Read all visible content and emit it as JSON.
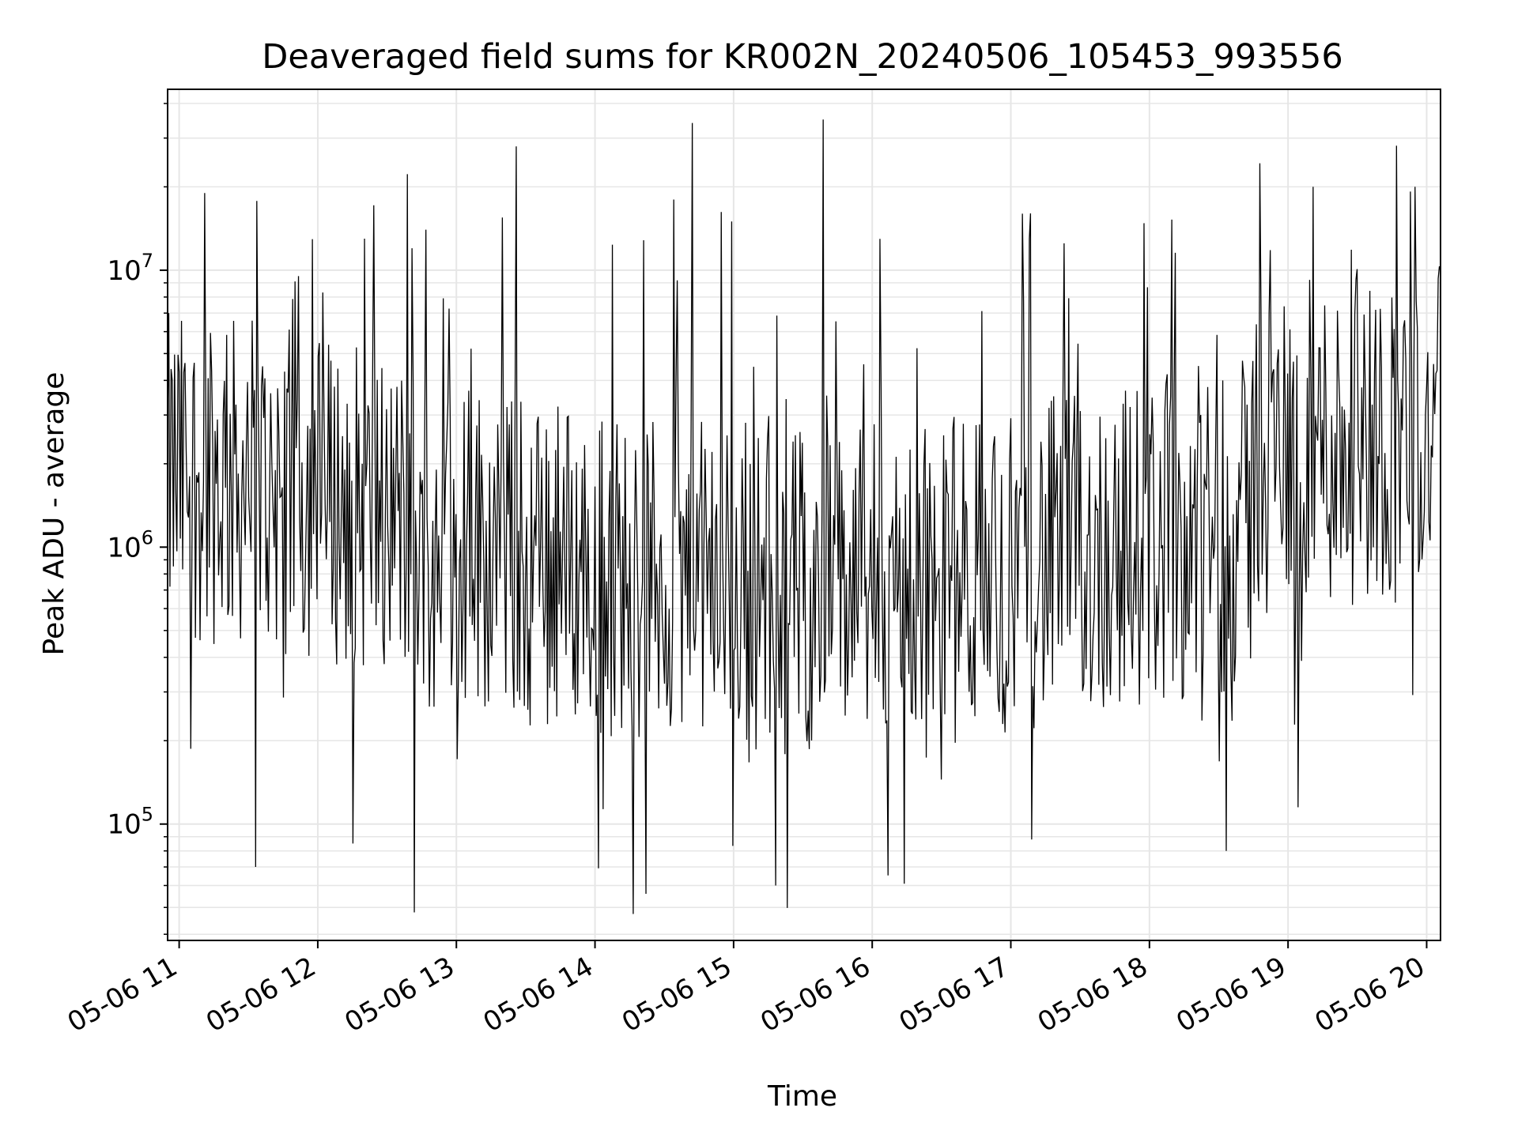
{
  "chart_data": {
    "type": "line",
    "title": "Deaveraged field sums for KR002N_20240506_105453_993556",
    "xlabel": "Time",
    "ylabel": "Peak ADU - average",
    "y_scale": "log",
    "ylim": [
      38000,
      45000000
    ],
    "xlim": [
      "2024-05-06T10:55:00",
      "2024-05-06T20:06:00"
    ],
    "x_ticks": [
      {
        "value": "2024-05-06T11:00:00",
        "label": "05-06 11"
      },
      {
        "value": "2024-05-06T12:00:00",
        "label": "05-06 12"
      },
      {
        "value": "2024-05-06T13:00:00",
        "label": "05-06 13"
      },
      {
        "value": "2024-05-06T14:00:00",
        "label": "05-06 14"
      },
      {
        "value": "2024-05-06T15:00:00",
        "label": "05-06 15"
      },
      {
        "value": "2024-05-06T16:00:00",
        "label": "05-06 16"
      },
      {
        "value": "2024-05-06T17:00:00",
        "label": "05-06 17"
      },
      {
        "value": "2024-05-06T18:00:00",
        "label": "05-06 18"
      },
      {
        "value": "2024-05-06T19:00:00",
        "label": "05-06 19"
      },
      {
        "value": "2024-05-06T20:00:00",
        "label": "05-06 20"
      }
    ],
    "y_ticks": [
      {
        "value": 100000,
        "base": "10",
        "exp": "5"
      },
      {
        "value": 1000000,
        "base": "10",
        "exp": "6"
      },
      {
        "value": 10000000,
        "base": "10",
        "exp": "7"
      }
    ],
    "grid": true,
    "line_color": "#000000",
    "grid_color": "#e6e6e6",
    "series": [
      {
        "x_start": "2024-05-06T10:55:00",
        "x_end": "2024-05-06T20:06:00",
        "sample_count": 1100,
        "typical_range": [
          300000,
          4000000
        ],
        "notable_points": [
          {
            "x": "2024-05-06T11:11:00",
            "y": 19000000
          },
          {
            "x": "2024-05-06T11:33:00",
            "y": 70000
          },
          {
            "x": "2024-05-06T12:20:00",
            "y": 13000000
          },
          {
            "x": "2024-05-06T12:41:00",
            "y": 12000000
          },
          {
            "x": "2024-05-06T12:42:00",
            "y": 48000
          },
          {
            "x": "2024-05-06T12:47:00",
            "y": 14000000
          },
          {
            "x": "2024-05-06T13:20:00",
            "y": 15500000
          },
          {
            "x": "2024-05-06T13:26:00",
            "y": 28000000
          },
          {
            "x": "2024-05-06T14:22:00",
            "y": 56000
          },
          {
            "x": "2024-05-06T14:34:00",
            "y": 18000000
          },
          {
            "x": "2024-05-06T14:42:00",
            "y": 34000000
          },
          {
            "x": "2024-05-06T14:59:00",
            "y": 15000000
          },
          {
            "x": "2024-05-06T15:18:00",
            "y": 60000
          },
          {
            "x": "2024-05-06T15:39:00",
            "y": 35000000
          },
          {
            "x": "2024-05-06T17:05:00",
            "y": 16000000
          },
          {
            "x": "2024-05-06T17:09:00",
            "y": 88000
          },
          {
            "x": "2024-05-06T17:23:00",
            "y": 12500000
          },
          {
            "x": "2024-05-06T19:11:00",
            "y": 20000000
          },
          {
            "x": "2024-05-06T19:55:00",
            "y": 20000000
          }
        ]
      }
    ]
  }
}
